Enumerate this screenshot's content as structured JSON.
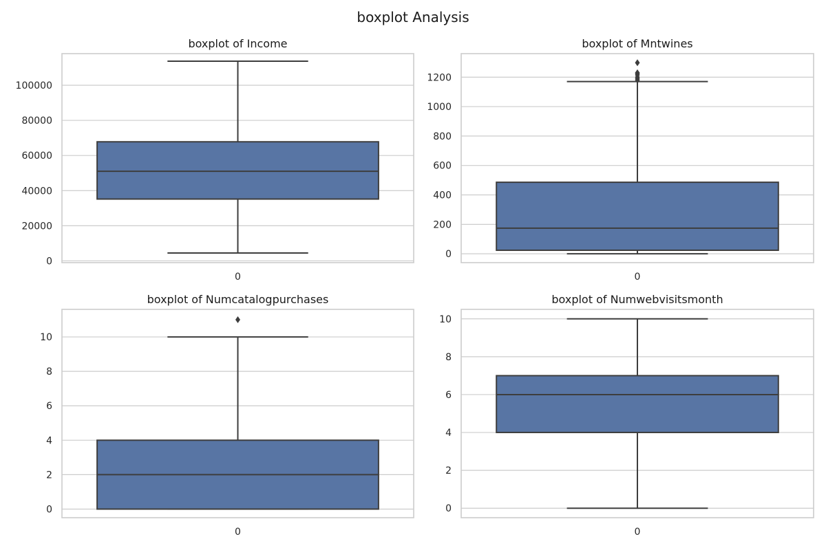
{
  "figure": {
    "suptitle": "boxplot Analysis"
  },
  "colors": {
    "box_fill": "#5875a4",
    "edge": "#3d3d3d",
    "grid": "#cccccc"
  },
  "chart_data": [
    {
      "type": "box",
      "title": "boxplot of Income",
      "categories": [
        "0"
      ],
      "ylim": [
        -1000,
        118000
      ],
      "yticks": [
        0,
        20000,
        40000,
        60000,
        80000,
        100000
      ],
      "ytick_labels": [
        "0",
        "20000",
        "40000",
        "60000",
        "80000",
        "100000"
      ],
      "grid": true,
      "box": {
        "whisker_low": 4500,
        "q1": 35200,
        "median": 51000,
        "q3": 67800,
        "whisker_high": 113700,
        "fliers": []
      }
    },
    {
      "type": "box",
      "title": "boxplot of Mntwines",
      "categories": [
        "0"
      ],
      "ylim": [
        -60,
        1360
      ],
      "yticks": [
        0,
        200,
        400,
        600,
        800,
        1000,
        1200
      ],
      "ytick_labels": [
        "0",
        "200",
        "400",
        "600",
        "800",
        "1000",
        "1200"
      ],
      "grid": true,
      "box": {
        "whisker_low": 0,
        "q1": 24,
        "median": 174,
        "q3": 486,
        "whisker_high": 1170,
        "fliers": [
          1180,
          1190,
          1200,
          1215,
          1225,
          1230,
          1298
        ]
      }
    },
    {
      "type": "box",
      "title": "boxplot of Numcatalogpurchases",
      "categories": [
        "0"
      ],
      "ylim": [
        -0.5,
        11.6
      ],
      "yticks": [
        0,
        2,
        4,
        6,
        8,
        10
      ],
      "ytick_labels": [
        "0",
        "2",
        "4",
        "6",
        "8",
        "10"
      ],
      "grid": true,
      "box": {
        "whisker_low": 0,
        "q1": 0,
        "median": 2,
        "q3": 4,
        "whisker_high": 10,
        "fliers": [
          11
        ]
      }
    },
    {
      "type": "box",
      "title": "boxplot of Numwebvisitsmonth",
      "categories": [
        "0"
      ],
      "ylim": [
        -0.5,
        10.5
      ],
      "yticks": [
        0,
        2,
        4,
        6,
        8,
        10
      ],
      "ytick_labels": [
        "0",
        "2",
        "4",
        "6",
        "8",
        "10"
      ],
      "grid": true,
      "box": {
        "whisker_low": 0,
        "q1": 4,
        "median": 6,
        "q3": 7,
        "whisker_high": 10,
        "fliers": []
      }
    }
  ]
}
